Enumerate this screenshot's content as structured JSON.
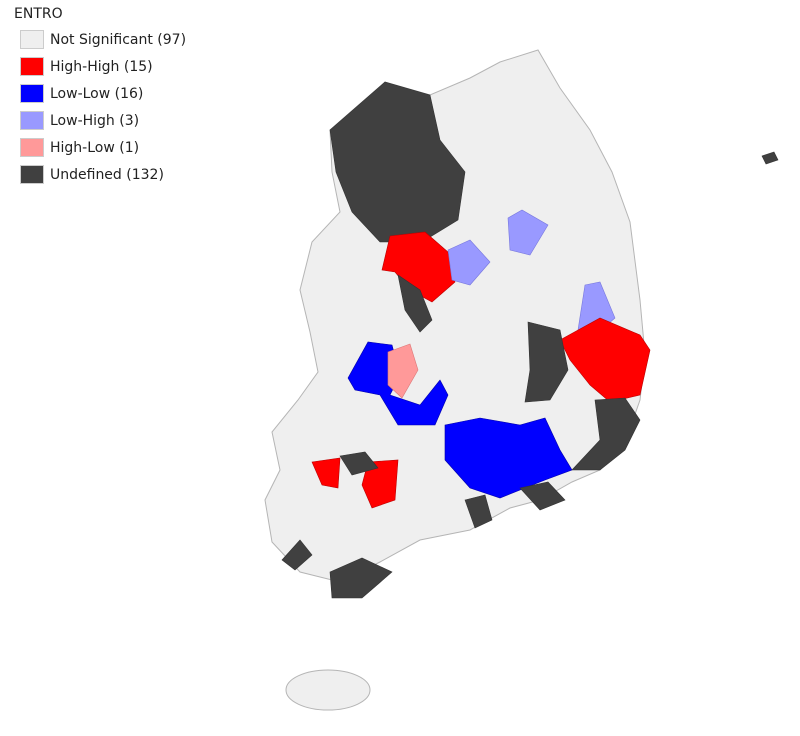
{
  "legend": {
    "title": "ENTRO",
    "items": [
      {
        "label": "Not Significant (97)",
        "color": "#efefef"
      },
      {
        "label": "High-High (15)",
        "color": "#ff0000"
      },
      {
        "label": "Low-Low (16)",
        "color": "#0000ff"
      },
      {
        "label": "Low-High (3)",
        "color": "#9999ff"
      },
      {
        "label": "High-Low (1)",
        "color": "#ff9999"
      },
      {
        "label": "Undefined (132)",
        "color": "#404040"
      }
    ]
  }
}
